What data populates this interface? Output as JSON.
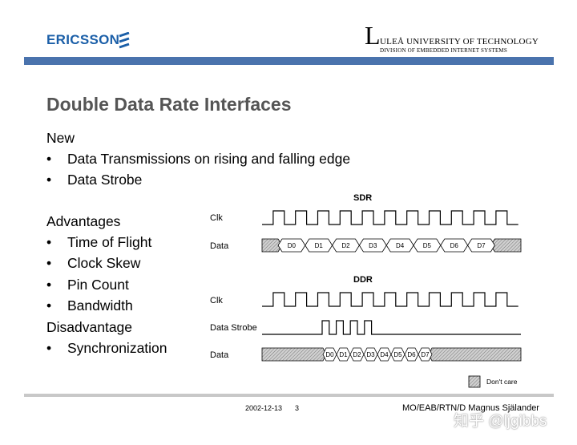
{
  "header": {
    "left_logo": "ERICSSON",
    "right_logo_letter": "L",
    "right_logo_name": "ULEÅ UNIVERSITY OF TECHNOLOGY",
    "right_logo_division": "DIVISION OF EMBEDDED INTERNET SYSTEMS"
  },
  "slide": {
    "title": "Double Data Rate Interfaces",
    "new_heading": "New",
    "new_items": [
      "Data Transmissions on rising and falling edge",
      "Data Strobe"
    ],
    "advantages_heading": "Advantages",
    "advantages": [
      "Time of Flight",
      "Clock Skew",
      "Pin Count",
      "Bandwidth"
    ],
    "disadvantage_heading": "Disadvantage",
    "disadvantages": [
      "Synchronization"
    ],
    "bullet": "•"
  },
  "diagram": {
    "sdr": {
      "title": "SDR",
      "clk_label": "Clk",
      "data_label": "Data",
      "clock_periods": 11,
      "data_words": [
        "D0",
        "D1",
        "D2",
        "D3",
        "D4",
        "D5",
        "D6",
        "D7"
      ]
    },
    "ddr": {
      "title": "DDR",
      "clk_label": "Clk",
      "strobe_label": "Data Strobe",
      "data_label": "Data",
      "clock_periods": 11,
      "strobe_pulses": 4,
      "data_words": [
        "D0",
        "D1",
        "D2",
        "D3",
        "D4",
        "D5",
        "D6",
        "D7"
      ]
    },
    "legend_label": "Don't care"
  },
  "footer": {
    "date": "2002-12-13",
    "page": "3",
    "author": "MO/EAB/RTN/D Magnus Själander"
  },
  "watermark": "知乎 @ljgibbs"
}
